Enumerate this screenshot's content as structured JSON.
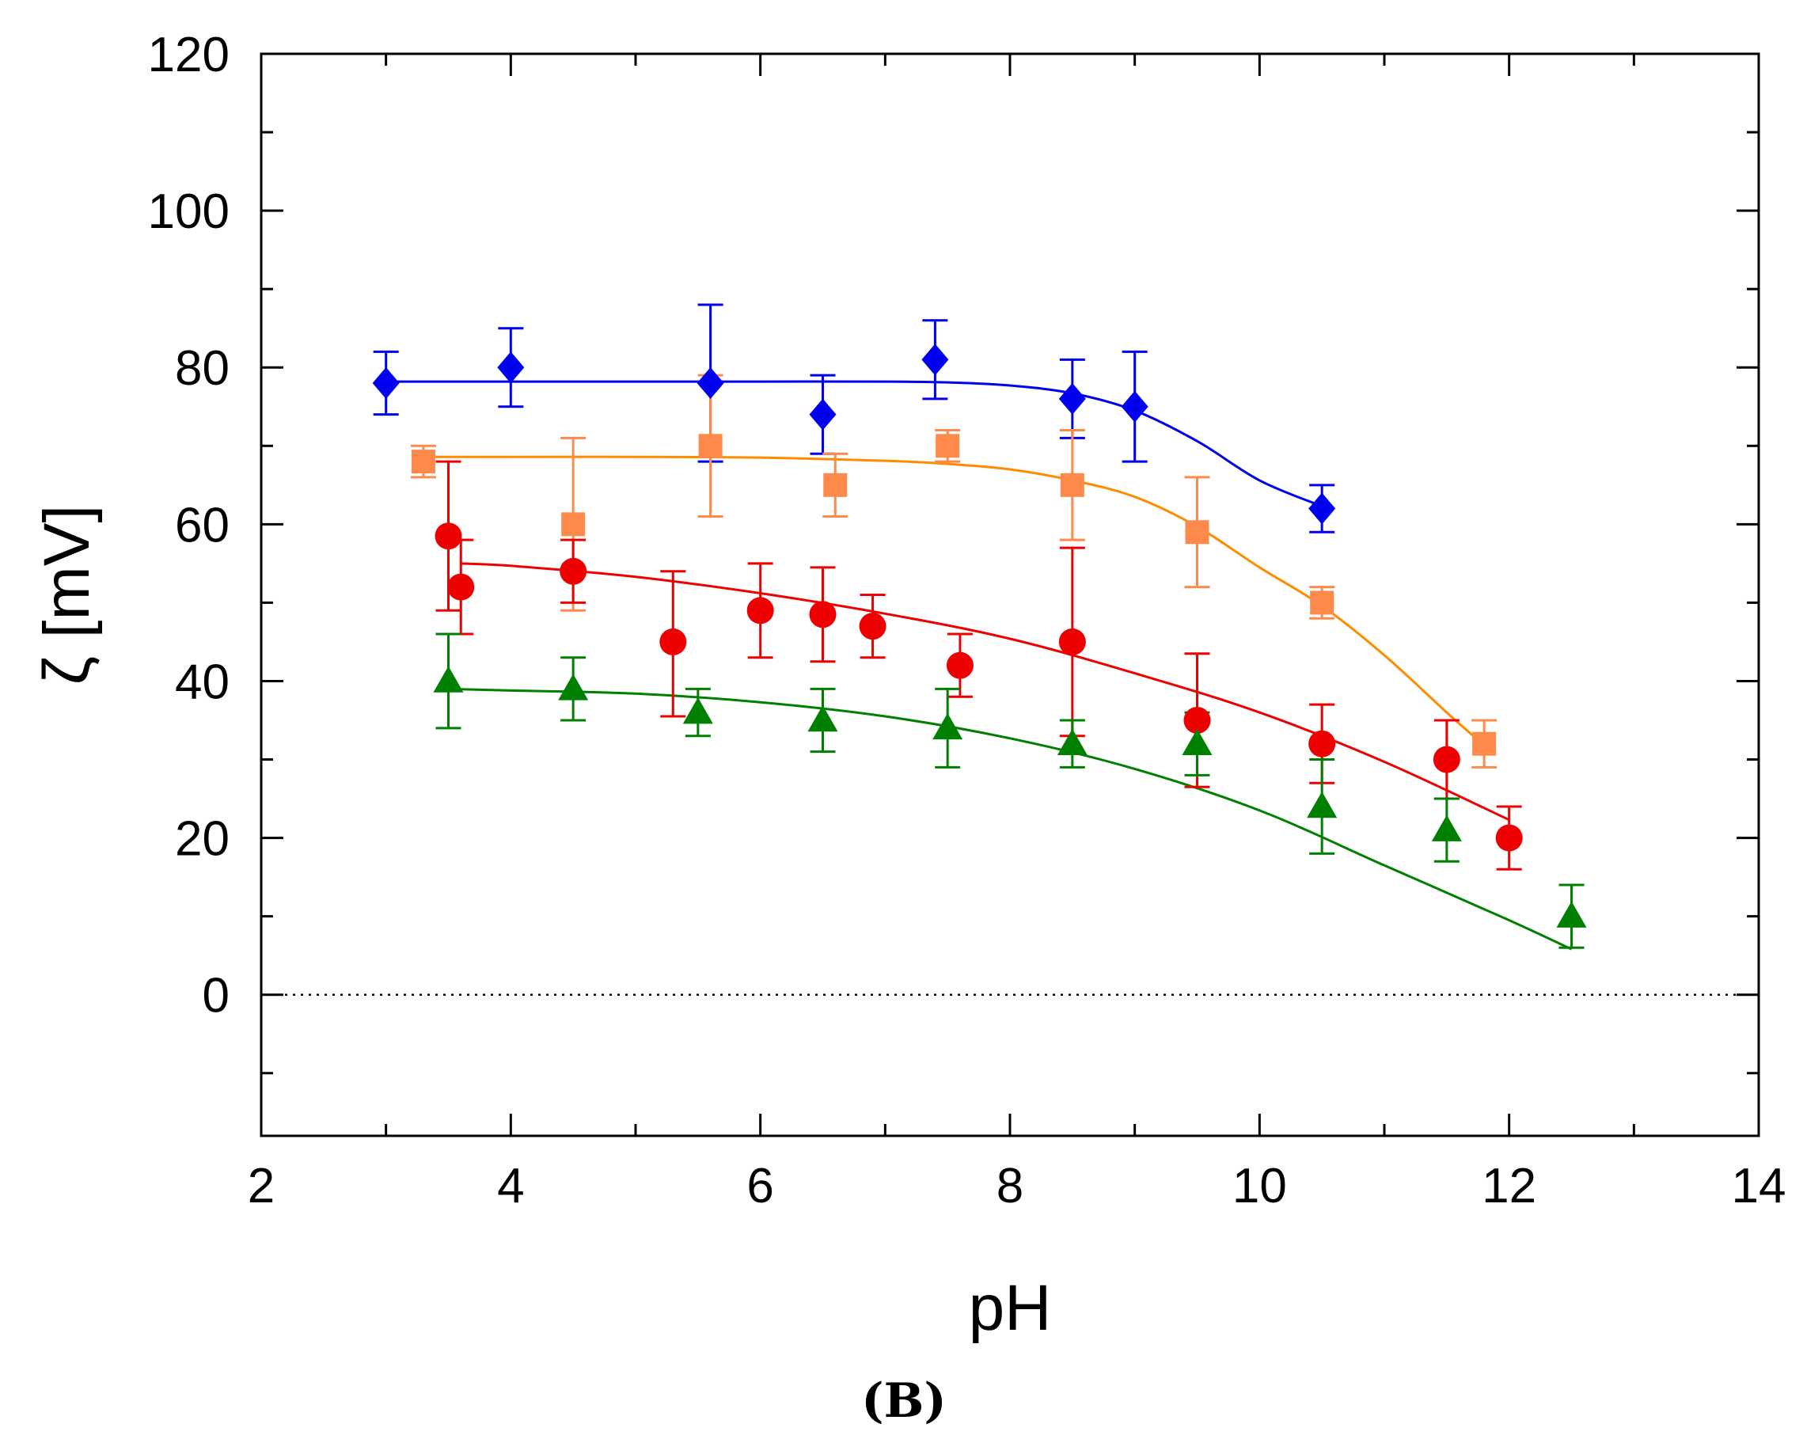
{
  "chart_data": {
    "type": "scatter",
    "title": "",
    "caption": "(B)",
    "xlabel": "pH",
    "ylabel": "ζ [mV]",
    "xlim": [
      2,
      14
    ],
    "ylim": [
      -18,
      120
    ],
    "xticks": [
      2,
      4,
      6,
      8,
      10,
      12,
      14
    ],
    "yticks": [
      0,
      20,
      40,
      60,
      80,
      100,
      120
    ],
    "xticks_minor": [
      3,
      5,
      7,
      9,
      11,
      13
    ],
    "yticks_minor": [
      -10,
      10,
      30,
      50,
      70,
      90,
      110
    ],
    "reference_line": {
      "y": 0,
      "style": "dotted"
    },
    "grid": false,
    "series": [
      {
        "name": "blue",
        "marker": "diamond",
        "color": "#0000ee",
        "x": [
          3.0,
          4.0,
          5.6,
          6.5,
          7.4,
          8.5,
          9.0,
          10.5
        ],
        "y": [
          78,
          80,
          78,
          74,
          81,
          76,
          75,
          62
        ],
        "err_upper": [
          82,
          85,
          88,
          79,
          86,
          81,
          82,
          65
        ],
        "err_lower": [
          74,
          75,
          68,
          69,
          76,
          71,
          68,
          59
        ],
        "fit_x": [
          3.0,
          4.0,
          5.0,
          6.0,
          7.0,
          7.5,
          8.0,
          8.5,
          9.0,
          9.5,
          10.0,
          10.5
        ],
        "fit_y": [
          78.2,
          78.2,
          78.2,
          78.2,
          78.2,
          78.1,
          77.7,
          76.7,
          74.5,
          70.6,
          65.6,
          62.3
        ]
      },
      {
        "name": "orange",
        "marker": "square",
        "color": "#fd8a4b",
        "line_color": "#ff8c00",
        "x": [
          3.3,
          4.5,
          5.6,
          6.6,
          7.5,
          8.5,
          9.5,
          10.5,
          11.8
        ],
        "y": [
          68,
          60,
          70,
          65,
          70,
          65,
          59,
          50,
          32
        ],
        "err_upper": [
          70,
          71,
          79,
          69,
          72,
          72,
          66,
          52,
          35
        ],
        "err_lower": [
          66,
          49,
          61,
          61,
          68,
          58,
          52,
          48,
          29
        ],
        "fit_x": [
          3.3,
          4.0,
          5.0,
          6.0,
          7.0,
          7.5,
          8.0,
          8.5,
          9.0,
          9.5,
          10.0,
          10.5,
          11.0,
          11.5,
          11.8
        ],
        "fit_y": [
          68.6,
          68.6,
          68.6,
          68.5,
          68.1,
          67.7,
          67.0,
          65.6,
          63.5,
          59.7,
          54.5,
          49.6,
          43.3,
          36.0,
          31.8
        ]
      },
      {
        "name": "red",
        "marker": "circle",
        "color": "#ee0000",
        "x": [
          3.5,
          3.6,
          4.5,
          5.3,
          6.0,
          6.5,
          6.9,
          7.6,
          8.5,
          9.5,
          10.5,
          11.5,
          12.0
        ],
        "y": [
          58.5,
          52,
          54,
          45,
          49,
          48.5,
          47,
          42,
          45,
          35,
          32,
          30,
          20
        ],
        "err_upper": [
          68,
          58,
          58,
          54,
          55,
          54.5,
          51,
          46,
          57,
          43.5,
          37,
          35,
          24
        ],
        "err_lower": [
          49,
          46,
          50,
          35.5,
          43,
          42.5,
          43,
          38,
          33,
          26.5,
          27,
          25,
          16
        ],
        "fit_x": [
          3.6,
          4.0,
          5.0,
          6.0,
          7.0,
          8.0,
          9.0,
          10.0,
          11.0,
          12.0
        ],
        "fit_y": [
          55,
          54.7,
          53.3,
          51.2,
          48.6,
          45.4,
          41.0,
          36.0,
          29.7,
          22.3
        ]
      },
      {
        "name": "green",
        "marker": "triangle",
        "color": "#008000",
        "x": [
          3.5,
          4.5,
          5.5,
          6.5,
          7.5,
          8.5,
          9.5,
          10.5,
          11.5,
          12.5
        ],
        "y": [
          40,
          39,
          36,
          35,
          34,
          32,
          32,
          24,
          21,
          10
        ],
        "err_upper": [
          46,
          43,
          39,
          39,
          39,
          35,
          36,
          30,
          25,
          14
        ],
        "err_lower": [
          34,
          35,
          33,
          31,
          29,
          29,
          28,
          18,
          17,
          6
        ],
        "fit_x": [
          3.5,
          4.0,
          5.0,
          6.0,
          7.0,
          8.0,
          9.0,
          10.0,
          11.0,
          12.0,
          12.5
        ],
        "fit_y": [
          39.0,
          38.8,
          38.4,
          37.3,
          35.5,
          32.7,
          28.8,
          23.5,
          16.5,
          9.5,
          5.8
        ]
      }
    ]
  }
}
